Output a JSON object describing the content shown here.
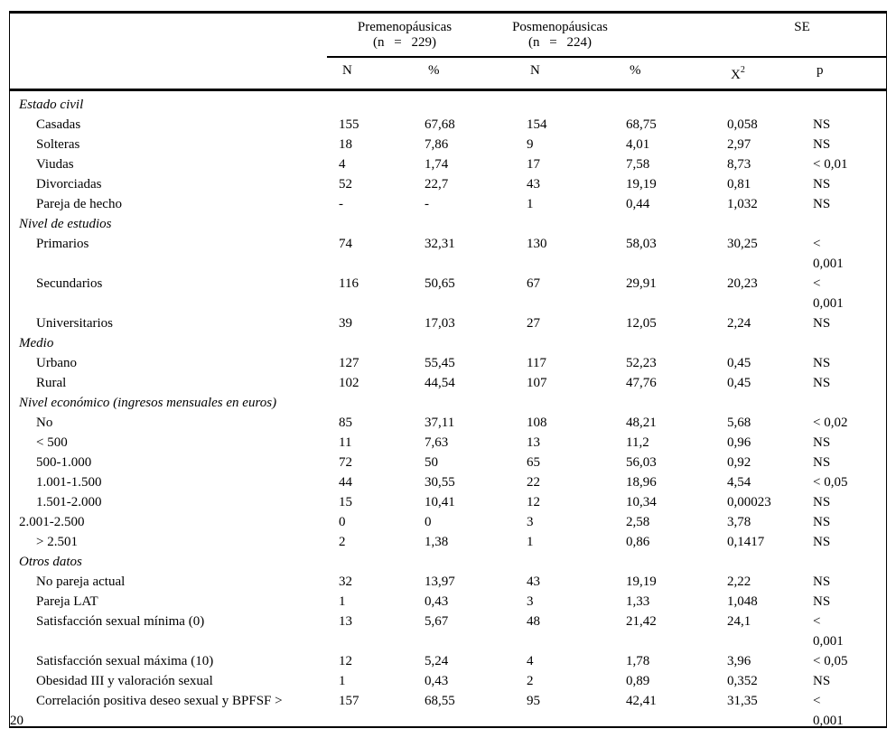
{
  "table": {
    "groups": [
      {
        "label": "Premenopáusicas",
        "sub": "(n = 229)"
      },
      {
        "label": "Posmenopáusicas",
        "sub": "(n = 224)"
      },
      {
        "label": "SE",
        "sub": ""
      }
    ],
    "col_headers": {
      "n1": "N",
      "pct1": "%",
      "n2": "N",
      "pct2": "%",
      "chi_base": "X",
      "chi_sup": "2",
      "p": "p"
    },
    "sections": [
      {
        "title": "Estado civil",
        "rows": [
          {
            "label": "Casadas",
            "indent": true,
            "values": [
              "155",
              "67,68",
              "154",
              "68,75",
              "0,058",
              "NS"
            ]
          },
          {
            "label": "Solteras",
            "indent": true,
            "values": [
              "18",
              "7,86",
              "9",
              "4,01",
              "2,97",
              "NS"
            ]
          },
          {
            "label": "Viudas",
            "indent": true,
            "values": [
              "4",
              "1,74",
              "17",
              "7,58",
              "8,73",
              "< 0,01"
            ]
          },
          {
            "label": "Divorciadas",
            "indent": true,
            "values": [
              "52",
              "22,7",
              "43",
              "19,19",
              "0,81",
              "NS"
            ]
          },
          {
            "label": "Pareja de hecho",
            "indent": true,
            "values": [
              "-",
              "-",
              "1",
              "0,44",
              "1,032",
              "NS"
            ]
          }
        ]
      },
      {
        "title": "Nivel de estudios",
        "rows": [
          {
            "label": "Primarios",
            "indent": true,
            "values": [
              "74",
              "32,31",
              "130",
              "58,03",
              "30,25",
              "<\n0,001"
            ]
          },
          {
            "label": "Secundarios",
            "indent": true,
            "values": [
              "116",
              "50,65",
              "67",
              "29,91",
              "20,23",
              "<\n0,001"
            ]
          },
          {
            "label": "Universitarios",
            "indent": true,
            "values": [
              "39",
              "17,03",
              "27",
              "12,05",
              "2,24",
              "NS"
            ]
          }
        ]
      },
      {
        "title": "Medio",
        "rows": [
          {
            "label": "Urbano",
            "indent": true,
            "values": [
              "127",
              "55,45",
              "117",
              "52,23",
              "0,45",
              "NS"
            ]
          },
          {
            "label": "Rural",
            "indent": true,
            "values": [
              "102",
              "44,54",
              "107",
              "47,76",
              "0,45",
              "NS"
            ]
          }
        ]
      },
      {
        "title": "Nivel económico (ingresos mensuales en euros)",
        "rows": [
          {
            "label": "No",
            "indent": true,
            "values": [
              "85",
              "37,11",
              "108",
              "48,21",
              "5,68",
              "< 0,02"
            ]
          },
          {
            "label": "< 500",
            "indent": true,
            "values": [
              "11",
              "7,63",
              "13",
              "11,2",
              "0,96",
              "NS"
            ]
          },
          {
            "label": "500-1.000",
            "indent": true,
            "values": [
              "72",
              "50",
              "65",
              "56,03",
              "0,92",
              "NS"
            ]
          },
          {
            "label": "1.001-1.500",
            "indent": true,
            "values": [
              "44",
              "30,55",
              "22",
              "18,96",
              "4,54",
              "< 0,05"
            ]
          },
          {
            "label": "1.501-2.000",
            "indent": true,
            "values": [
              "15",
              "10,41",
              "12",
              "10,34",
              "0,00023",
              "NS"
            ]
          },
          {
            "label": "2.001-2.500",
            "indent": false,
            "values": [
              "0",
              "0",
              "3",
              "2,58",
              "3,78",
              "NS"
            ]
          },
          {
            "label": "> 2.501",
            "indent": true,
            "values": [
              "2",
              "1,38",
              "1",
              "0,86",
              "0,1417",
              "NS"
            ]
          }
        ]
      },
      {
        "title": "Otros datos",
        "rows": [
          {
            "label": "No pareja actual",
            "indent": true,
            "values": [
              "32",
              "13,97",
              "43",
              "19,19",
              "2,22",
              "NS"
            ]
          },
          {
            "label": "Pareja LAT",
            "indent": true,
            "values": [
              "1",
              "0,43",
              "3",
              "1,33",
              "1,048",
              "NS"
            ]
          },
          {
            "label": "Satisfacción sexual mínima (0)",
            "indent": true,
            "values": [
              "13",
              "5,67",
              "48",
              "21,42",
              "24,1",
              "<\n0,001"
            ]
          },
          {
            "label": "Satisfacción sexual máxima (10)",
            "indent": true,
            "values": [
              "12",
              "5,24",
              "4",
              "1,78",
              "3,96",
              "< 0,05"
            ]
          },
          {
            "label": "Obesidad III y valoración sexual",
            "indent": true,
            "values": [
              "1",
              "0,43",
              "2",
              "0,89",
              "0,352",
              "NS"
            ]
          },
          {
            "label": "Correlación positiva deseo sexual y BPFSF >\n20",
            "indent": true,
            "values": [
              "157",
              "68,55",
              "95",
              "42,41",
              "31,35",
              "<\n0,001"
            ]
          }
        ]
      }
    ]
  }
}
